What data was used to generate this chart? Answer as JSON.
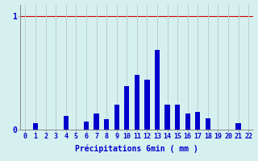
{
  "xlabel": "Précipitations 6min ( mm )",
  "bar_color": "#0000cc",
  "background_color": "#d6f0f0",
  "grid_color": "#b8d0d0",
  "text_color": "#0000cc",
  "red_line_color": "#cc0000",
  "ylim": [
    0,
    1.1
  ],
  "yticks": [
    0,
    1
  ],
  "ytick_labels": [
    "0",
    "1"
  ],
  "xlim": [
    -0.5,
    22.5
  ],
  "categories": [
    0,
    1,
    2,
    3,
    4,
    5,
    6,
    7,
    8,
    9,
    10,
    11,
    12,
    13,
    14,
    15,
    16,
    17,
    18,
    19,
    20,
    21,
    22
  ],
  "values": [
    0.0,
    0.06,
    0.0,
    0.0,
    0.12,
    0.0,
    0.07,
    0.14,
    0.09,
    0.22,
    0.38,
    0.48,
    0.44,
    0.7,
    0.22,
    0.22,
    0.14,
    0.16,
    0.1,
    0.0,
    0.0,
    0.06,
    0.0
  ],
  "bar_width": 0.5,
  "xlabel_fontsize": 7,
  "tick_fontsize": 6
}
